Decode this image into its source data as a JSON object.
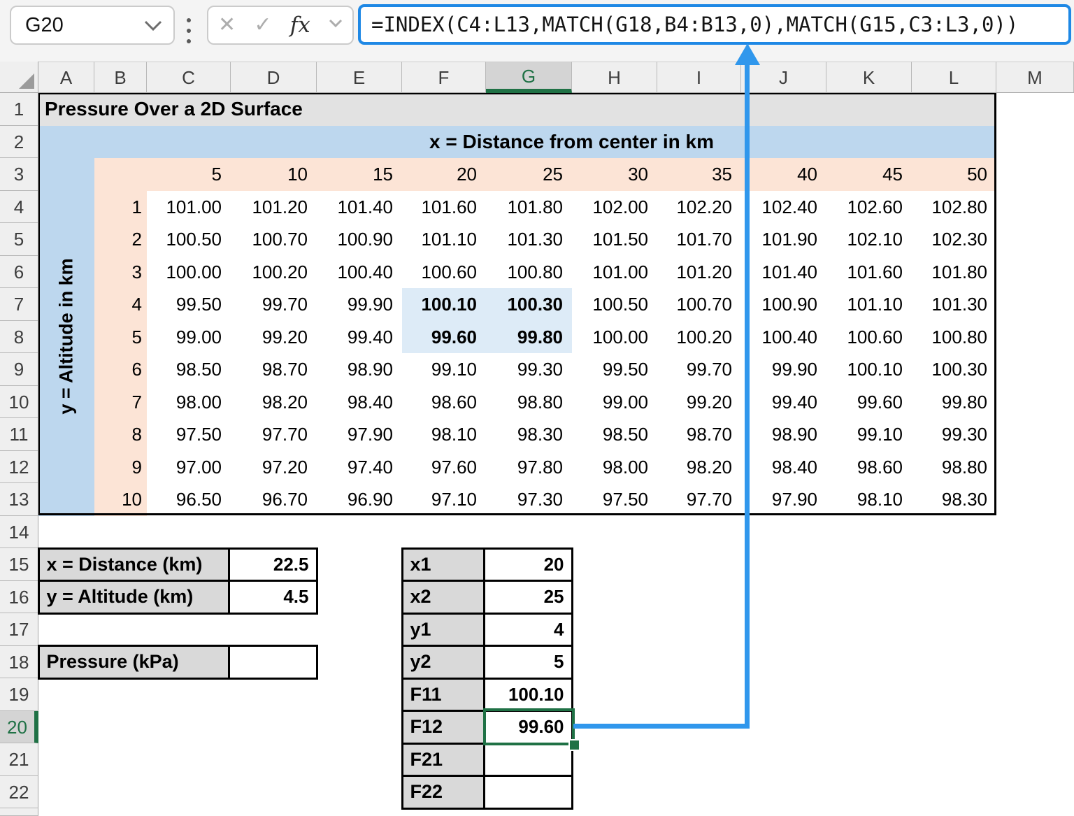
{
  "formula_bar": {
    "name_box_value": "G20",
    "formula": "=INDEX(C4:L13,MATCH(G18,B4:B13,0),MATCH(G15,C3:L3,0))",
    "cancel_glyph": "✕",
    "confirm_glyph": "✓",
    "fx_label": "fx"
  },
  "sheet": {
    "column_letters": [
      "A",
      "B",
      "C",
      "D",
      "E",
      "F",
      "G",
      "H",
      "I",
      "J",
      "K",
      "L",
      "M"
    ],
    "row_numbers": [
      1,
      2,
      3,
      4,
      5,
      6,
      7,
      8,
      9,
      10,
      11,
      12,
      13,
      14,
      15,
      16,
      17,
      18,
      19,
      20,
      21,
      22
    ],
    "selected_column": "G",
    "selected_row": 20,
    "selected_cell": "G20"
  },
  "pressure_table": {
    "title": "Pressure Over a 2D Surface",
    "x_axis_label": "x = Distance from center in km",
    "y_axis_label": "y = Altitude in km",
    "x_values": [
      "5",
      "10",
      "15",
      "20",
      "25",
      "30",
      "35",
      "40",
      "45",
      "50"
    ],
    "y_values": [
      "1",
      "2",
      "3",
      "4",
      "5",
      "6",
      "7",
      "8",
      "9",
      "10"
    ],
    "values": [
      [
        "101.00",
        "101.20",
        "101.40",
        "101.60",
        "101.80",
        "102.00",
        "102.20",
        "102.40",
        "102.60",
        "102.80"
      ],
      [
        "100.50",
        "100.70",
        "100.90",
        "101.10",
        "101.30",
        "101.50",
        "101.70",
        "101.90",
        "102.10",
        "102.30"
      ],
      [
        "100.00",
        "100.20",
        "100.40",
        "100.60",
        "100.80",
        "101.00",
        "101.20",
        "101.40",
        "101.60",
        "101.80"
      ],
      [
        "99.50",
        "99.70",
        "99.90",
        "100.10",
        "100.30",
        "100.50",
        "100.70",
        "100.90",
        "101.10",
        "101.30"
      ],
      [
        "99.00",
        "99.20",
        "99.40",
        "99.60",
        "99.80",
        "100.00",
        "100.20",
        "100.40",
        "100.60",
        "100.80"
      ],
      [
        "98.50",
        "98.70",
        "98.90",
        "99.10",
        "99.30",
        "99.50",
        "99.70",
        "99.90",
        "100.10",
        "100.30"
      ],
      [
        "98.00",
        "98.20",
        "98.40",
        "98.60",
        "98.80",
        "99.00",
        "99.20",
        "99.40",
        "99.60",
        "99.80"
      ],
      [
        "97.50",
        "97.70",
        "97.90",
        "98.10",
        "98.30",
        "98.50",
        "98.70",
        "98.90",
        "99.10",
        "99.30"
      ],
      [
        "97.00",
        "97.20",
        "97.40",
        "97.60",
        "97.80",
        "98.00",
        "98.20",
        "98.40",
        "98.60",
        "98.80"
      ],
      [
        "96.50",
        "96.70",
        "96.90",
        "97.10",
        "97.30",
        "97.50",
        "97.70",
        "97.90",
        "98.10",
        "98.30"
      ]
    ],
    "highlighted_rows": [
      3,
      4
    ],
    "highlighted_cols": [
      3,
      4
    ]
  },
  "input_table": {
    "rows": [
      {
        "label": "x = Distance (km)",
        "value": "22.5"
      },
      {
        "label": "y = Altitude (km)",
        "value": "4.5"
      }
    ],
    "pressure_row": {
      "label": "Pressure (kPa)",
      "value": ""
    }
  },
  "interp_table": {
    "rows": [
      {
        "label": "x1",
        "value": "20"
      },
      {
        "label": "x2",
        "value": "25"
      },
      {
        "label": "y1",
        "value": "4"
      },
      {
        "label": "y2",
        "value": "5"
      },
      {
        "label": "F11",
        "value": "100.10"
      },
      {
        "label": "F12",
        "value": "99.60",
        "selected": true
      },
      {
        "label": "F21",
        "value": ""
      },
      {
        "label": "F22",
        "value": ""
      }
    ]
  },
  "colors": {
    "accent_green": "#1F7145",
    "arrow_blue": "#3097EC",
    "formula_border_blue": "#1E88E5",
    "band_blue": "#BDD7EE",
    "band_peach": "#FCE4D6",
    "highlight_blue": "#DDEBF7",
    "label_gray": "#D9D9D9",
    "title_gray": "#E2E2E2"
  }
}
